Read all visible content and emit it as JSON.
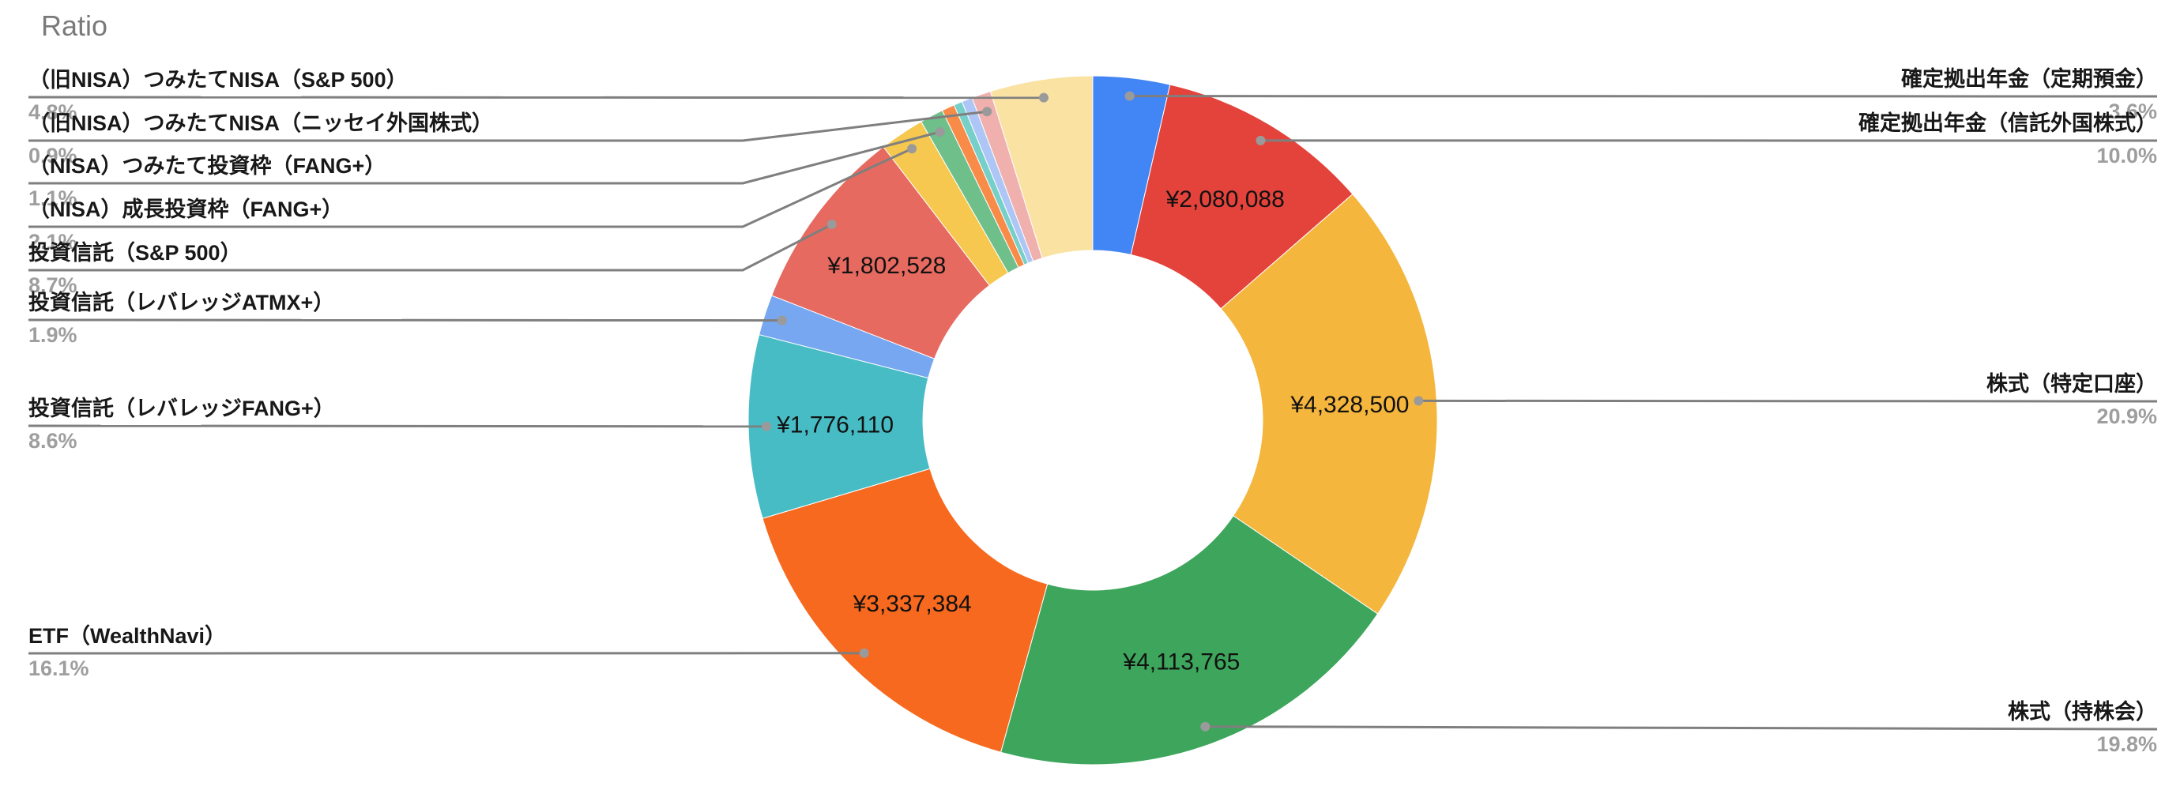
{
  "title": "Ratio",
  "chart_data": {
    "type": "pie",
    "subtype": "donut",
    "title": "Ratio",
    "legend_position": "none",
    "labels_layout": "outside-with-leader-lines",
    "value_labels_layout": "inside-slices",
    "inner_radius_ratio": 0.49,
    "start_angle_deg": 0,
    "direction": "clockwise",
    "leader_line_color": "#7f7f7f",
    "leader_dot_color": "#9a9a9a",
    "slices": [
      {
        "label": "確定拠出年金（定期預金）",
        "percent": 3.6,
        "percent_text": "3.6%",
        "value_text": "",
        "color": "#4285F4",
        "callout": "right"
      },
      {
        "label": "確定拠出年金（信託外国株式）",
        "percent": 10.0,
        "percent_text": "10.0%",
        "value_text": "¥2,080,088",
        "color": "#E4433B",
        "callout": "right"
      },
      {
        "label": "株式（特定口座）",
        "percent": 20.9,
        "percent_text": "20.9%",
        "value_text": "¥4,328,500",
        "color": "#F4B63D",
        "callout": "right"
      },
      {
        "label": "株式（持株会）",
        "percent": 19.8,
        "percent_text": "19.8%",
        "value_text": "¥4,113,765",
        "color": "#3DA65C",
        "callout": "right"
      },
      {
        "label": "ETF（WealthNavi）",
        "percent": 16.1,
        "percent_text": "16.1%",
        "value_text": "¥3,337,384",
        "color": "#F6691E",
        "callout": "left"
      },
      {
        "label": "投資信託（レバレッジFANG+）",
        "percent": 8.6,
        "percent_text": "8.6%",
        "value_text": "¥1,776,110",
        "color": "#47BCC5",
        "callout": "left"
      },
      {
        "label": "投資信託（レバレッジATMX+）",
        "percent": 1.9,
        "percent_text": "1.9%",
        "value_text": "",
        "color": "#76A7F0",
        "callout": "left"
      },
      {
        "label": "投資信託（S&P 500）",
        "percent": 8.7,
        "percent_text": "8.7%",
        "value_text": "¥1,802,528",
        "color": "#E66A60",
        "callout": "left"
      },
      {
        "label": "（NISA）成長投資枠（FANG+）",
        "percent": 2.1,
        "percent_text": "2.1%",
        "value_text": "",
        "color": "#F6C84F",
        "callout": "left"
      },
      {
        "label": "（NISA）つみたて投資枠（FANG+）",
        "percent": 1.1,
        "percent_text": "1.1%",
        "value_text": "",
        "color": "#6FBF8B",
        "callout": "left"
      },
      {
        "label": "",
        "percent": 0.6,
        "percent_text": "",
        "value_text": "",
        "color": "#F88B47",
        "callout": "none"
      },
      {
        "label": "",
        "percent": 0.4,
        "percent_text": "",
        "value_text": "",
        "color": "#76CFC8",
        "callout": "none"
      },
      {
        "label": "",
        "percent": 0.5,
        "percent_text": "",
        "value_text": "",
        "color": "#AEC6F6",
        "callout": "none"
      },
      {
        "label": "（旧NISA）つみたてNISA（ニッセイ外国株式）",
        "percent": 0.9,
        "percent_text": "0.9%",
        "value_text": "",
        "color": "#F0B0AD",
        "callout": "left"
      },
      {
        "label": "（旧NISA）つみたてNISA（S&P 500）",
        "percent": 4.8,
        "percent_text": "4.8%",
        "value_text": "",
        "color": "#F9E2A2",
        "callout": "left"
      }
    ]
  }
}
